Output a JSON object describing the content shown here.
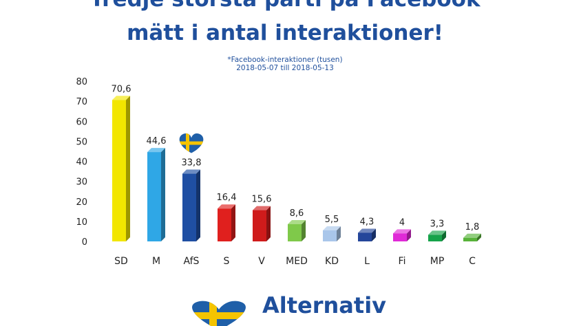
{
  "header": {
    "line1": "Tredje största parti på Facebook",
    "line2": "mätt i antal interaktioner!",
    "subtitle": "*Facebook-interaktioner (tusen)",
    "date_range": "2018-05-07 till 2018-05-13"
  },
  "brand": {
    "name": "Alternativ"
  },
  "chart_data": {
    "type": "bar",
    "title": "",
    "xlabel": "",
    "ylabel": "",
    "ylim": [
      0,
      80
    ],
    "y_ticks": [
      "0",
      "10",
      "20",
      "30",
      "40",
      "50",
      "60",
      "70",
      "80"
    ],
    "grid": false,
    "categories": [
      "SD",
      "M",
      "AfS",
      "S",
      "V",
      "MED",
      "KD",
      "L",
      "Fi",
      "MP",
      "C"
    ],
    "values": [
      70.6,
      44.6,
      33.8,
      16.4,
      15.6,
      8.6,
      5.5,
      4.3,
      4,
      3.3,
      1.8
    ],
    "value_labels": [
      "70,6",
      "44,6",
      "33,8",
      "16,4",
      "15,6",
      "8,6",
      "5,5",
      "4,3",
      "4",
      "3,3",
      "1,8"
    ],
    "colors": [
      "#f2e600",
      "#2fa7e6",
      "#1f4fa3",
      "#e0201e",
      "#cf1b1b",
      "#7fc94a",
      "#a9c6ea",
      "#24469a",
      "#e02ad7",
      "#16a34a",
      "#58b33a"
    ],
    "highlight": {
      "category": "AfS",
      "icon": "sweden-heart-icon"
    }
  },
  "colors": {
    "title": "#1f4f9c",
    "flag_blue": "#1f5fa8",
    "flag_yellow": "#f5c400"
  }
}
